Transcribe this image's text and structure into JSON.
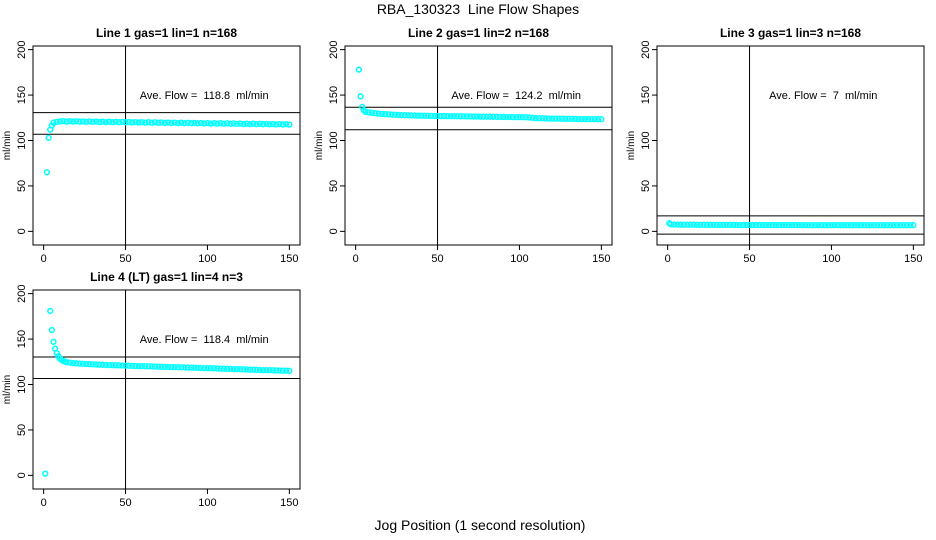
{
  "main_title": "RBA_130323  Line Flow Shapes",
  "x_axis_label": "Jog Position (1 second resolution)",
  "colors": {
    "points": "#00FFFF",
    "axis": "#000000",
    "background": "#FFFFFF"
  },
  "chart_data": {
    "type": "scatter",
    "ylabel": "ml/min",
    "xticks": [
      0,
      50,
      100,
      150
    ],
    "yticks": [
      0,
      50,
      100,
      150,
      200
    ],
    "xlim": [
      -6.5,
      156.5
    ],
    "ylim": [
      -15,
      204
    ],
    "vline_x": 50,
    "grid": false,
    "legend": "none",
    "panels": [
      {
        "title": "Line 1 gas=1 lin=1 n=168",
        "ave_flow": 118.8,
        "ave_flow_label": "Ave. Flow =  118.8  ml/min",
        "hlines": [
          130.7,
          106.9
        ],
        "annotation_pos": [
          98,
          150
        ],
        "extra_points": [
          [
            2,
            65
          ],
          [
            3,
            103
          ],
          [
            4,
            112
          ],
          [
            5,
            116.5
          ]
        ],
        "series": {
          "x0": 6,
          "dx": 2,
          "y": [
            119.5,
            120.6,
            121.0,
            121.3,
            120.8,
            121.2,
            120.9,
            121.1,
            120.7,
            121.0,
            120.6,
            121.0,
            120.5,
            120.9,
            120.4,
            120.8,
            120.3,
            120.7,
            120.2,
            120.6,
            120.1,
            120.5,
            120.0,
            120.4,
            119.9,
            120.3,
            119.8,
            120.2,
            119.7,
            120.1,
            119.6,
            120.0,
            119.5,
            119.9,
            119.4,
            119.8,
            119.3,
            119.7,
            119.2,
            119.6,
            119.1,
            119.5,
            119.0,
            119.4,
            118.9,
            119.3,
            118.8,
            119.2,
            118.7,
            119.1,
            118.6,
            119.0,
            118.5,
            118.9,
            118.4,
            118.8,
            118.3,
            118.7,
            118.2,
            118.6,
            118.1,
            118.5,
            118.0,
            118.4,
            117.9,
            118.3,
            117.8,
            118.2,
            117.7,
            118.1,
            117.6,
            118.0,
            117.5
          ]
        }
      },
      {
        "title": "Line 2 gas=1 lin=2 n=168",
        "ave_flow": 124.2,
        "ave_flow_label": "Ave. Flow =  124.2  ml/min",
        "hlines": [
          136.6,
          111.8
        ],
        "annotation_pos": [
          98,
          150
        ],
        "extra_points": [
          [
            2,
            178
          ],
          [
            3,
            148.5
          ],
          [
            4,
            137
          ],
          [
            5,
            133.5
          ]
        ],
        "series": {
          "x0": 6,
          "dx": 2,
          "y": [
            131.5,
            130.9,
            130.4,
            130.0,
            129.6,
            129.3,
            129.0,
            128.8,
            128.5,
            128.4,
            128.2,
            128.0,
            127.9,
            127.7,
            127.6,
            127.5,
            127.4,
            127.3,
            127.2,
            127.2,
            127.1,
            127.0,
            127.0,
            126.9,
            126.9,
            126.8,
            126.8,
            126.7,
            126.7,
            126.6,
            126.6,
            126.5,
            126.5,
            126.4,
            126.4,
            126.3,
            126.3,
            126.2,
            126.2,
            126.1,
            126.1,
            126.0,
            126.0,
            125.9,
            125.9,
            125.8,
            125.8,
            125.7,
            125.6,
            125.5,
            125.3,
            125.0,
            124.7,
            124.5,
            124.4,
            124.3,
            124.2,
            124.1,
            124.1,
            124.0,
            124.0,
            123.9,
            123.9,
            123.8,
            123.8,
            123.7,
            123.7,
            123.6,
            123.6,
            123.5,
            123.5,
            123.4,
            123.4
          ]
        }
      },
      {
        "title": "Line 3 gas=1 lin=3 n=168",
        "ave_flow": 7,
        "ave_flow_label": "Ave. Flow =  7  ml/min",
        "hlines": [
          17,
          -3
        ],
        "annotation_pos": [
          95,
          150
        ],
        "extra_points": [
          [
            1,
            9
          ]
        ],
        "series": {
          "x0": 2,
          "dx": 2,
          "y": [
            7.8,
            7.6,
            7.5,
            7.4,
            7.4,
            7.3,
            7.3,
            7.3,
            7.2,
            7.2,
            7.2,
            7.2,
            7.2,
            7.1,
            7.1,
            7.1,
            7.1,
            7.1,
            7.1,
            7.1,
            7.0,
            7.0,
            7.0,
            7.0,
            7.0,
            7.0,
            7.0,
            7.0,
            7.0,
            7.0,
            7.0,
            7.0,
            7.0,
            7.0,
            7.0,
            7.0,
            7.0,
            7.0,
            7.0,
            7.0,
            6.9,
            6.9,
            6.9,
            6.9,
            6.9,
            6.9,
            6.9,
            6.9,
            6.9,
            6.9,
            6.9,
            6.9,
            6.9,
            6.9,
            6.9,
            6.9,
            6.9,
            6.9,
            6.9,
            6.9,
            6.8,
            6.8,
            6.8,
            6.8,
            6.8,
            6.8,
            6.8,
            6.8,
            6.8,
            6.8,
            6.8,
            6.8,
            6.8,
            6.8,
            6.8
          ]
        }
      },
      {
        "title": "Line 4 (LT) gas=1 lin=4 n=3",
        "ave_flow": 118.4,
        "ave_flow_label": "Ave. Flow =  118.4  ml/min",
        "hlines": [
          130.2,
          106.6
        ],
        "annotation_pos": [
          98,
          150
        ],
        "extra_points": [
          [
            1,
            2
          ],
          [
            4,
            181
          ],
          [
            5,
            160
          ],
          [
            6,
            147
          ],
          [
            7,
            139.5
          ],
          [
            8,
            134.5
          ],
          [
            9,
            131
          ],
          [
            10,
            128.5
          ],
          [
            11,
            127
          ],
          [
            12,
            126
          ],
          [
            13,
            125.2
          ]
        ],
        "series": {
          "x0": 14,
          "dx": 2,
          "y": [
            124.5,
            124.0,
            123.6,
            123.3,
            123.0,
            122.8,
            122.6,
            122.4,
            122.2,
            122.0,
            121.9,
            121.7,
            121.6,
            121.4,
            121.3,
            121.2,
            121.0,
            120.9,
            120.8,
            120.7,
            120.5,
            120.4,
            120.3,
            120.2,
            120.1,
            120.0,
            119.9,
            119.8,
            119.6,
            119.5,
            119.4,
            119.3,
            119.2,
            119.1,
            119.0,
            118.9,
            118.8,
            118.7,
            118.6,
            118.5,
            118.3,
            118.2,
            118.1,
            118.0,
            117.9,
            117.8,
            117.7,
            117.5,
            117.4,
            117.3,
            117.2,
            117.0,
            116.9,
            116.8,
            116.7,
            116.5,
            116.4,
            116.3,
            116.2,
            116.0,
            115.9,
            115.8,
            115.7,
            115.6,
            115.5,
            115.4,
            115.3,
            115.2,
            115.1
          ]
        }
      }
    ]
  }
}
